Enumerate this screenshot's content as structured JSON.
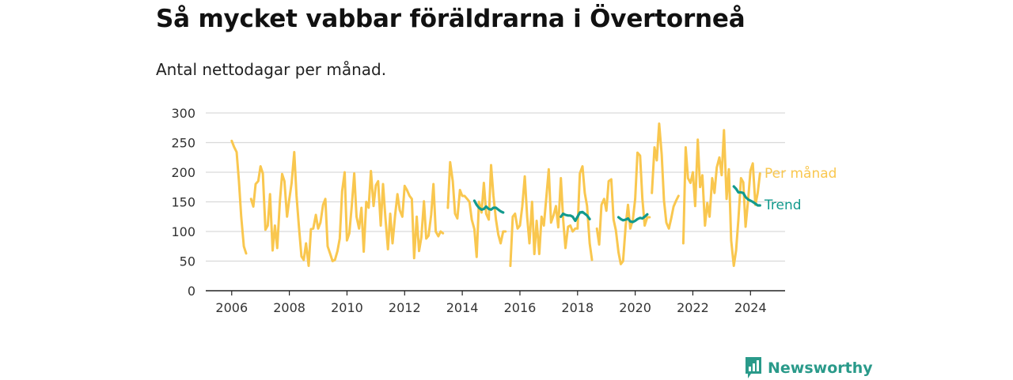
{
  "title": "Så mycket vabbar föräldrarna i Övertorneå",
  "subtitle": "Antal nettodagar per månad.",
  "brand": {
    "name": "Newsworthy",
    "icon": "newsworthy-logo-icon"
  },
  "colors": {
    "monthly": "#f9c74f",
    "trend": "#129a8d",
    "grid": "#d9d9d9",
    "axis": "#222222"
  },
  "chart_data": {
    "type": "line",
    "title": "Så mycket vabbar föräldrarna i Övertorneå",
    "subtitle": "Antal nettodagar per månad.",
    "ylim": [
      0,
      300
    ],
    "yticks": [
      "0",
      "50",
      "100",
      "150",
      "200",
      "250",
      "300"
    ],
    "xlim": [
      2005.1,
      2025.2
    ],
    "xticks": [
      "2006",
      "2008",
      "2010",
      "2012",
      "2014",
      "2016",
      "2018",
      "2020",
      "2022",
      "2024"
    ],
    "grid": true,
    "series": [
      {
        "name": "Per månad",
        "segments": [
          {
            "x": [
              2006.0,
              2006.08,
              2006.17,
              2006.25,
              2006.33,
              2006.42,
              2006.5
            ],
            "y": [
              253,
              243,
              234,
              185,
              125,
              75,
              63
            ]
          },
          {
            "x": [
              2006.67,
              2006.75,
              2006.83,
              2006.92,
              2007.0,
              2007.08,
              2007.17,
              2007.25,
              2007.33,
              2007.42,
              2007.5,
              2007.58,
              2007.67,
              2007.75,
              2007.83,
              2007.92,
              2008.0,
              2008.08,
              2008.17,
              2008.25,
              2008.33,
              2008.42,
              2008.5,
              2008.58,
              2008.67,
              2008.75,
              2008.83,
              2008.92,
              2009.0,
              2009.08,
              2009.17,
              2009.25,
              2009.33,
              2009.42,
              2009.5,
              2009.58,
              2009.67,
              2009.75,
              2009.83,
              2009.92,
              2010.0,
              2010.08,
              2010.17,
              2010.25,
              2010.33,
              2010.42,
              2010.5,
              2010.58,
              2010.67,
              2010.75,
              2010.83,
              2010.92,
              2011.0,
              2011.08,
              2011.17,
              2011.25,
              2011.33,
              2011.42,
              2011.5,
              2011.58,
              2011.67,
              2011.75,
              2011.83,
              2011.92,
              2012.0,
              2012.08,
              2012.17,
              2012.25,
              2012.33,
              2012.42,
              2012.5,
              2012.58,
              2012.67,
              2012.75,
              2012.83,
              2012.92,
              2013.0,
              2013.08,
              2013.17,
              2013.25,
              2013.33
            ],
            "y": [
              155,
              142,
              180,
              185,
              210,
              198,
              103,
              110,
              163,
              68,
              110,
              72,
              150,
              197,
              185,
              125,
              155,
              182,
              234,
              160,
              110,
              58,
              52,
              80,
              42,
              104,
              105,
              128,
              105,
              115,
              145,
              155,
              75,
              62,
              50,
              52,
              67,
              88,
              168,
              200,
              85,
              97,
              145,
              198,
              125,
              105,
              140,
              66,
              150,
              140,
              202,
              143,
              178,
              185,
              110,
              180,
              125,
              70,
              130,
              80,
              128,
              163,
              136,
              125,
              177,
              170,
              160,
              155,
              55,
              125,
              67,
              90,
              151,
              88,
              93,
              128,
              180,
              100,
              92,
              100,
              97
            ]
          },
          {
            "x": [
              2013.5,
              2013.58,
              2013.67,
              2013.75,
              2013.83,
              2013.92,
              2014.0,
              2014.08,
              2014.17,
              2014.25,
              2014.33,
              2014.42,
              2014.5,
              2014.58,
              2014.67,
              2014.75,
              2014.83,
              2014.92,
              2015.0,
              2015.08,
              2015.17,
              2015.25,
              2015.33,
              2015.42,
              2015.5
            ],
            "y": [
              140,
              217,
              185,
              130,
              122,
              170,
              160,
              160,
              155,
              150,
              120,
              104,
              57,
              150,
              132,
              182,
              130,
              120,
              212,
              160,
              120,
              95,
              80,
              100,
              100
            ]
          },
          {
            "x": [
              2015.67,
              2015.75,
              2015.83,
              2015.92,
              2016.0,
              2016.08,
              2016.17,
              2016.25,
              2016.33,
              2016.42,
              2016.5,
              2016.58,
              2016.67,
              2016.75,
              2016.83,
              2016.92,
              2017.0,
              2017.08,
              2017.17,
              2017.25,
              2017.33,
              2017.42,
              2017.5,
              2017.58,
              2017.67,
              2017.75,
              2017.83,
              2017.92,
              2018.0,
              2018.08,
              2018.17,
              2018.25,
              2018.33,
              2018.42,
              2018.5
            ],
            "y": [
              42,
              125,
              130,
              105,
              110,
              142,
              193,
              125,
              80,
              150,
              62,
              118,
              62,
              125,
              110,
              160,
              205,
              115,
              128,
              143,
              107,
              190,
              120,
              72,
              108,
              110,
              100,
              105,
              105,
              198,
              210,
              165,
              143,
              80,
              52
            ]
          },
          {
            "x": [
              2018.67,
              2018.75,
              2018.83,
              2018.92,
              2019.0,
              2019.08,
              2019.17,
              2019.25,
              2019.33,
              2019.42,
              2019.5,
              2019.58,
              2019.67,
              2019.75,
              2019.83,
              2019.92,
              2020.0,
              2020.08,
              2020.17,
              2020.25,
              2020.33,
              2020.42,
              2020.5
            ],
            "y": [
              105,
              78,
              145,
              155,
              135,
              185,
              188,
              120,
              102,
              65,
              45,
              50,
              110,
              145,
              105,
              120,
              155,
              233,
              228,
              155,
              110,
              124,
              124
            ]
          },
          {
            "x": [
              2020.58,
              2020.67,
              2020.75,
              2020.83,
              2020.92,
              2021.0,
              2021.08,
              2021.17,
              2021.25,
              2021.33,
              2021.42,
              2021.5
            ],
            "y": [
              165,
              242,
              220,
              282,
              230,
              152,
              115,
              105,
              122,
              142,
              152,
              160
            ]
          },
          {
            "x": [
              2021.67,
              2021.75,
              2021.83,
              2021.92,
              2022.0,
              2022.08,
              2022.17,
              2022.25,
              2022.33,
              2022.42,
              2022.5,
              2022.58,
              2022.67,
              2022.75,
              2022.83,
              2022.92,
              2023.0,
              2023.08,
              2023.17,
              2023.25,
              2023.33,
              2023.42,
              2023.5,
              2023.58,
              2023.67,
              2023.75,
              2023.83,
              2023.92,
              2024.0,
              2024.08,
              2024.17,
              2024.25,
              2024.33
            ],
            "y": [
              80,
              242,
              190,
              182,
              200,
              143,
              255,
              175,
              195,
              110,
              148,
              125,
              190,
              165,
              208,
              225,
              195,
              271,
              155,
              205,
              85,
              42,
              68,
              120,
              190,
              183,
              108,
              155,
              203,
              215,
              145,
              165,
              198
            ]
          }
        ]
      },
      {
        "name": "Trend",
        "segments": [
          {
            "x": [
              2014.42,
              2014.5,
              2014.58,
              2014.67,
              2014.75,
              2014.83,
              2014.92,
              2015.0,
              2015.08,
              2015.17,
              2015.25,
              2015.33,
              2015.42
            ],
            "y": [
              152,
              145,
              140,
              137,
              138,
              142,
              138,
              137,
              140,
              140,
              137,
              134,
              132
            ]
          },
          {
            "x": [
              2017.42,
              2017.5,
              2017.58,
              2017.67,
              2017.75,
              2017.83,
              2017.92,
              2018.0,
              2018.08,
              2018.17,
              2018.25,
              2018.33,
              2018.42
            ],
            "y": [
              125,
              130,
              128,
              127,
              127,
              125,
              118,
              125,
              132,
              133,
              130,
              127,
              121
            ]
          },
          {
            "x": [
              2019.42,
              2019.5,
              2019.58,
              2019.67,
              2019.75,
              2019.83,
              2019.92,
              2020.0,
              2020.08,
              2020.17,
              2020.25,
              2020.33,
              2020.42
            ],
            "y": [
              124,
              121,
              119,
              120,
              122,
              117,
              116,
              118,
              121,
              123,
              122,
              125,
              129
            ]
          },
          {
            "x": [
              2023.42,
              2023.5,
              2023.58,
              2023.67,
              2023.75,
              2023.83,
              2023.92,
              2024.0,
              2024.08,
              2024.17,
              2024.25,
              2024.33
            ],
            "y": [
              176,
              172,
              166,
              166,
              165,
              158,
              154,
              152,
              150,
              147,
              144,
              144
            ]
          }
        ]
      }
    ]
  }
}
